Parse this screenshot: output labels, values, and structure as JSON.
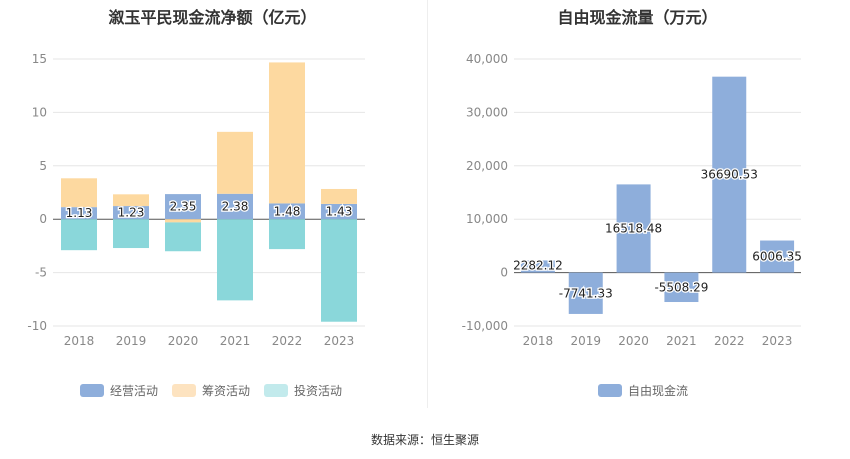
{
  "source": "数据来源：恒生聚源",
  "chart_data": [
    {
      "type": "bar",
      "stacked": true,
      "title": "溆玉平民现金流净额（亿元）",
      "categories": [
        "2018",
        "2019",
        "2020",
        "2021",
        "2022",
        "2023"
      ],
      "ylim": [
        -10,
        15
      ],
      "yticks": [
        "15",
        "10",
        "5",
        "0",
        "-5",
        "-10"
      ],
      "series": [
        {
          "name": "经营活动",
          "color": "#8eaedb",
          "values": [
            1.13,
            1.23,
            2.35,
            2.38,
            1.48,
            1.43
          ],
          "labels": [
            "1.13",
            "1.23",
            "2.35",
            "2.38",
            "1.48",
            "1.43"
          ]
        },
        {
          "name": "筹资活动",
          "color": "#fdd9a0",
          "values": [
            2.7,
            1.1,
            -0.3,
            5.8,
            13.2,
            1.4
          ]
        },
        {
          "name": "投资活动",
          "color": "#8ad7da",
          "values": [
            -2.9,
            -2.7,
            -2.7,
            -7.6,
            -2.8,
            -9.6
          ]
        }
      ],
      "legend_colors": [
        "#8eaedb",
        "#fde3c0",
        "#c2eaec"
      ]
    },
    {
      "type": "bar",
      "title": "自由现金流量（万元）",
      "categories": [
        "2018",
        "2019",
        "2020",
        "2021",
        "2022",
        "2023"
      ],
      "ylim": [
        -10000,
        40000
      ],
      "yticks": [
        "40,000",
        "30,000",
        "20,000",
        "10,000",
        "0",
        "-10,000"
      ],
      "series": [
        {
          "name": "自由现金流",
          "color": "#8eaedb",
          "values": [
            2282.12,
            -7741.33,
            16518.48,
            -5508.29,
            36690.53,
            6006.35
          ],
          "labels": [
            "2282.12",
            "-7741.33",
            "16518.48",
            "-5508.29",
            "36690.53",
            "6006.35"
          ]
        }
      ]
    }
  ]
}
